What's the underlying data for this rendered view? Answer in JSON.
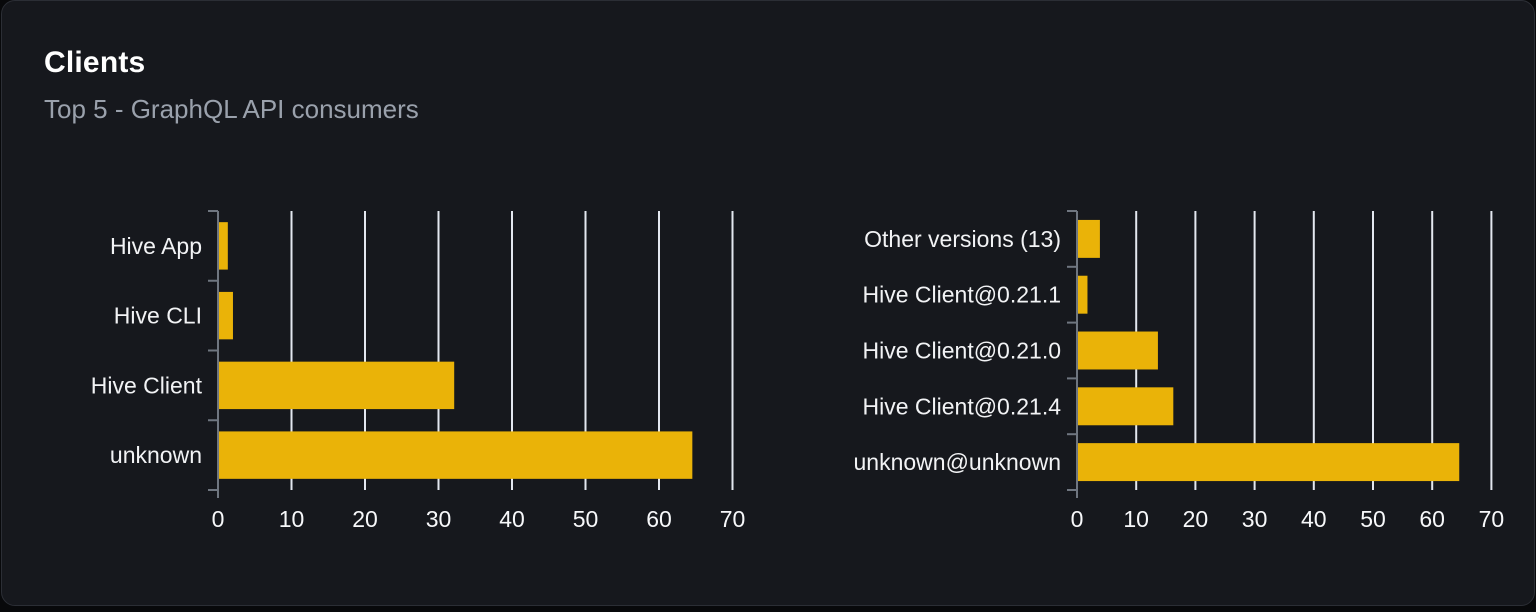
{
  "card": {
    "title": "Clients",
    "subtitle": "Top 5 - GraphQL API consumers"
  },
  "theme": {
    "page_background": "#08090b",
    "card_background": "#16181d",
    "card_border": "#2b2e35",
    "title_color": "#ffffff",
    "subtitle_color": "#9aa1ac",
    "bar_color": "#eab308",
    "grid_color": "#e3e7ef",
    "axis_color": "#6f7680",
    "category_label_color": "#f2f3f5",
    "tick_label_color": "#f7f8fa"
  },
  "chart_data": [
    {
      "type": "bar",
      "name": "clients-by-name",
      "orientation": "horizontal",
      "title": "",
      "categories": [
        "Hive App",
        "Hive CLI",
        "Hive Client",
        "unknown"
      ],
      "values": [
        1.2,
        1.9,
        32,
        64.4
      ],
      "xlim": [
        0,
        70
      ],
      "xticks": [
        0,
        10,
        20,
        30,
        40,
        50,
        60,
        70
      ],
      "grid": true,
      "legend": false
    },
    {
      "type": "bar",
      "name": "clients-by-version",
      "orientation": "horizontal",
      "title": "",
      "categories": [
        "Other versions (13)",
        "Hive Client@0.21.1",
        "Hive Client@0.21.0",
        "Hive Client@0.21.4",
        "unknown@unknown"
      ],
      "values": [
        3.7,
        1.6,
        13.5,
        16.1,
        64.4
      ],
      "xlim": [
        0,
        70
      ],
      "xticks": [
        0,
        10,
        20,
        30,
        40,
        50,
        60,
        70
      ],
      "grid": true,
      "legend": false
    }
  ]
}
